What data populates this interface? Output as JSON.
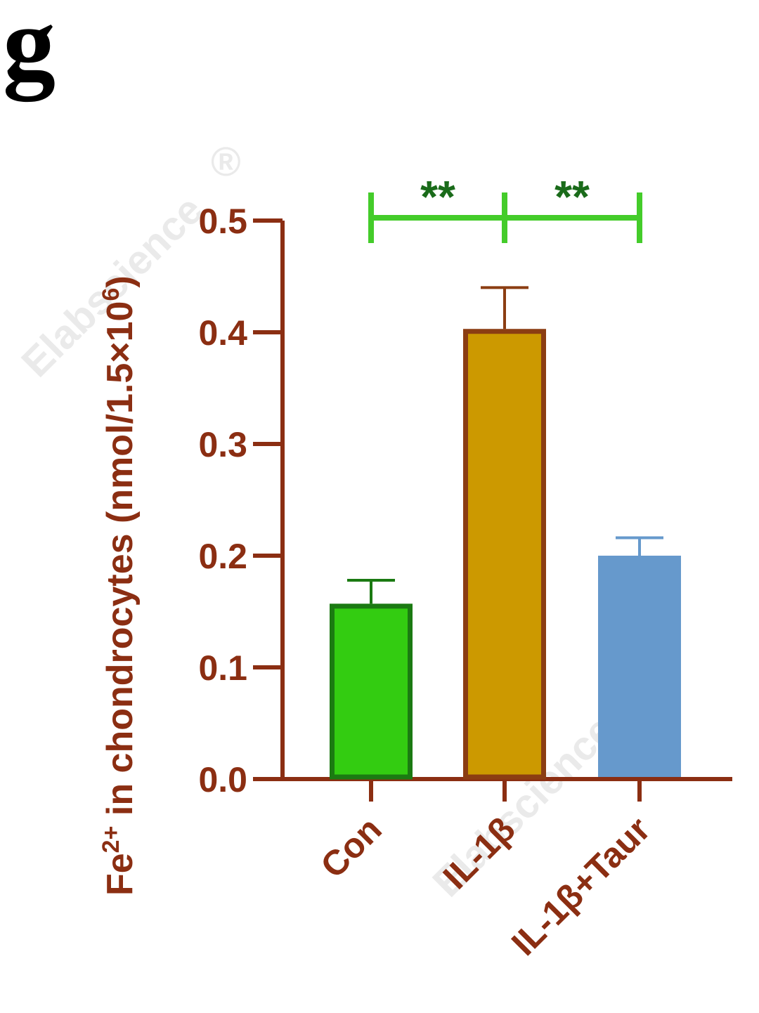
{
  "panel_label": "g",
  "watermark": "Elabscience",
  "watermark_mark": "®",
  "colors": {
    "axis": "#8b2e12",
    "bracket": "#44cc2a",
    "sig": "#1a6b1a",
    "con_fill": "#33cc11",
    "con_edge": "#1b7a12",
    "il_fill": "#cc9900",
    "il_edge": "#8b3d12",
    "taur_fill": "#6699cc",
    "taur_edge": "#6699cc"
  },
  "chart_data": {
    "type": "bar",
    "ylabel": {
      "prefix": "Fe",
      "sup": "2+",
      "middle": " in chondrocytes (nmol/1.5×10",
      "exp": "6",
      "suffix": ")"
    },
    "xlabel": "",
    "ylim": [
      0,
      0.5
    ],
    "yticks": [
      0.0,
      0.1,
      0.2,
      0.3,
      0.4,
      0.5
    ],
    "ytick_labels": [
      "0.0",
      "0.1",
      "0.2",
      "0.3",
      "0.4",
      "0.5"
    ],
    "categories": [
      "Con",
      "IL-1β",
      "IL-1β+Taur"
    ],
    "values": [
      0.157,
      0.403,
      0.2
    ],
    "errors": [
      0.021,
      0.037,
      0.016
    ],
    "significance": [
      {
        "from": 0,
        "to": 1,
        "label": "**"
      },
      {
        "from": 1,
        "to": 2,
        "label": "**"
      }
    ],
    "bar_colors": [
      "#33cc11",
      "#cc9900",
      "#6699cc"
    ],
    "bar_edges": [
      "#1b7a12",
      "#8b3d12",
      "#6699cc"
    ],
    "grid": false,
    "legend": "none"
  }
}
